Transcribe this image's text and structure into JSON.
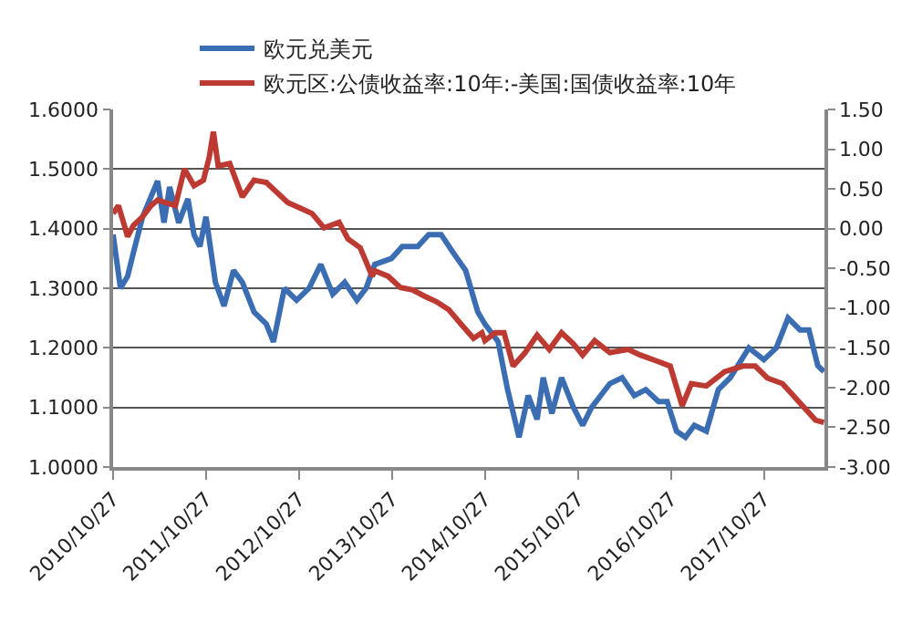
{
  "chart_data": {
    "type": "line",
    "series": [
      {
        "name": "欧元兑美元",
        "color": "#3b6db3",
        "x": [
          "2010-10-27",
          "2010-11-25",
          "2010-12-23",
          "2011-01-15",
          "2011-02-20",
          "2011-04-20",
          "2011-05-15",
          "2011-06-06",
          "2011-07-12",
          "2011-08-17",
          "2011-09-10",
          "2011-10-03",
          "2011-10-27",
          "2011-12-03",
          "2012-01-06",
          "2012-02-12",
          "2012-03-18",
          "2012-05-03",
          "2012-06-20",
          "2012-07-18",
          "2012-08-30",
          "2012-10-17",
          "2012-12-05",
          "2013-01-20",
          "2013-03-08",
          "2013-04-24",
          "2013-06-11",
          "2013-07-17",
          "2013-08-20",
          "2013-10-25",
          "2013-12-06",
          "2014-02-05",
          "2014-03-20",
          "2014-05-08",
          "2014-06-24",
          "2014-08-12",
          "2014-09-29",
          "2014-10-27",
          "2014-12-18",
          "2015-01-24",
          "2015-03-10",
          "2015-04-15",
          "2015-05-20",
          "2015-06-13",
          "2015-07-17",
          "2015-08-24",
          "2015-10-10",
          "2015-11-15",
          "2015-12-20",
          "2016-03-01",
          "2016-04-18",
          "2016-06-05",
          "2016-07-20",
          "2016-09-08",
          "2016-10-12",
          "2016-11-18",
          "2016-12-23",
          "2017-01-27",
          "2017-03-15",
          "2017-05-01",
          "2017-06-17",
          "2017-08-29",
          "2017-10-27",
          "2017-12-15",
          "2018-01-30",
          "2018-03-18",
          "2018-04-22",
          "2018-05-27",
          "2018-06-20"
        ],
        "values": [
          1.39,
          1.3,
          1.32,
          1.36,
          1.42,
          1.48,
          1.41,
          1.47,
          1.41,
          1.45,
          1.39,
          1.37,
          1.42,
          1.31,
          1.27,
          1.33,
          1.31,
          1.26,
          1.24,
          1.21,
          1.3,
          1.28,
          1.3,
          1.34,
          1.29,
          1.31,
          1.28,
          1.3,
          1.34,
          1.35,
          1.37,
          1.37,
          1.39,
          1.39,
          1.36,
          1.33,
          1.26,
          1.24,
          1.21,
          1.13,
          1.05,
          1.12,
          1.08,
          1.15,
          1.09,
          1.15,
          1.1,
          1.07,
          1.1,
          1.14,
          1.15,
          1.12,
          1.13,
          1.11,
          1.11,
          1.06,
          1.05,
          1.07,
          1.06,
          1.13,
          1.15,
          1.2,
          1.18,
          1.2,
          1.25,
          1.23,
          1.23,
          1.17,
          1.16
        ]
      },
      {
        "name": "欧元区:公债收益率:10年:-美国:国债收益率:10年",
        "color": "#bd3a33",
        "axis": "y2",
        "x": [
          "2010-10-27",
          "2010-11-17",
          "2010-12-04",
          "2010-12-23",
          "2011-01-15",
          "2011-02-20",
          "2011-03-25",
          "2011-04-20",
          "2011-06-29",
          "2011-08-03",
          "2011-09-10",
          "2011-10-17",
          "2011-11-09",
          "2011-11-25",
          "2011-12-14",
          "2012-01-28",
          "2012-03-18",
          "2012-05-03",
          "2012-06-20",
          "2012-09-12",
          "2012-10-30",
          "2012-12-17",
          "2013-02-02",
          "2013-04-02",
          "2013-05-07",
          "2013-06-24",
          "2013-08-10",
          "2013-08-20",
          "2013-10-12",
          "2013-11-29",
          "2014-01-16",
          "2014-03-04",
          "2014-04-20",
          "2014-06-07",
          "2014-07-25",
          "2014-09-12",
          "2014-10-15",
          "2014-10-27",
          "2014-12-06",
          "2015-01-10",
          "2015-02-15",
          "2015-04-03",
          "2015-05-20",
          "2015-07-07",
          "2015-08-24",
          "2015-10-10",
          "2015-11-15",
          "2016-01-01",
          "2016-03-01",
          "2016-05-12",
          "2016-06-28",
          "2016-08-27",
          "2016-10-24",
          "2016-12-10",
          "2017-01-15",
          "2017-03-15",
          "2017-05-26",
          "2017-08-06",
          "2017-09-23",
          "2017-11-10",
          "2018-01-08",
          "2018-03-08",
          "2018-05-18",
          "2018-06-20"
        ],
        "values": [
          0.19,
          0.29,
          0.11,
          -0.1,
          0.04,
          0.15,
          0.29,
          0.36,
          0.29,
          0.75,
          0.54,
          0.61,
          0.9,
          1.22,
          0.79,
          0.82,
          0.4,
          0.61,
          0.58,
          0.33,
          0.26,
          0.19,
          0.01,
          0.08,
          -0.13,
          -0.24,
          -0.6,
          -0.53,
          -0.6,
          -0.74,
          -0.77,
          -0.85,
          -0.92,
          -1.02,
          -1.2,
          -1.38,
          -1.31,
          -1.41,
          -1.31,
          -1.31,
          -1.73,
          -1.56,
          -1.34,
          -1.52,
          -1.31,
          -1.45,
          -1.59,
          -1.41,
          -1.56,
          -1.52,
          -1.59,
          -1.66,
          -1.73,
          -2.23,
          -1.95,
          -1.98,
          -1.8,
          -1.73,
          -1.73,
          -1.88,
          -1.95,
          -2.16,
          -2.41,
          -2.44
        ]
      }
    ],
    "xlim": [
      "2010-10-27",
      "2018-06-22"
    ],
    "xticks": [
      {
        "value": "2010-10-27",
        "label": "2010/10/27"
      },
      {
        "value": "2011-10-27",
        "label": "2011/10/27"
      },
      {
        "value": "2012-10-27",
        "label": "2012/10/27"
      },
      {
        "value": "2013-10-27",
        "label": "2013/10/27"
      },
      {
        "value": "2014-10-27",
        "label": "2014/10/27"
      },
      {
        "value": "2015-10-27",
        "label": "2015/10/27"
      },
      {
        "value": "2016-10-27",
        "label": "2016/10/27"
      },
      {
        "value": "2017-10-27",
        "label": "2017/10/27"
      }
    ],
    "ylim": [
      1.0,
      1.6
    ],
    "yticks": [
      {
        "value": 1.0,
        "label": "1.0000"
      },
      {
        "value": 1.1,
        "label": "1.1000"
      },
      {
        "value": 1.2,
        "label": "1.2000"
      },
      {
        "value": 1.3,
        "label": "1.3000"
      },
      {
        "value": 1.4,
        "label": "1.4000"
      },
      {
        "value": 1.5,
        "label": "1.5000"
      },
      {
        "value": 1.6,
        "label": "1.6000"
      }
    ],
    "y2lim": [
      -3.0,
      1.5
    ],
    "y2ticks": [
      {
        "value": -3.0,
        "label": "-3.00"
      },
      {
        "value": -2.5,
        "label": "-2.50"
      },
      {
        "value": -2.0,
        "label": "-2.00"
      },
      {
        "value": -1.5,
        "label": "-1.50"
      },
      {
        "value": -1.0,
        "label": "-1.00"
      },
      {
        "value": -0.5,
        "label": "-0.50"
      },
      {
        "value": 0,
        "label": "0.00"
      },
      {
        "value": 0.5,
        "label": "0.50"
      },
      {
        "value": 1.0,
        "label": "1.00"
      },
      {
        "value": 1.5,
        "label": "1.50"
      }
    ],
    "grid": "y",
    "legend": "top",
    "marker": "none",
    "line_style": "solid"
  }
}
